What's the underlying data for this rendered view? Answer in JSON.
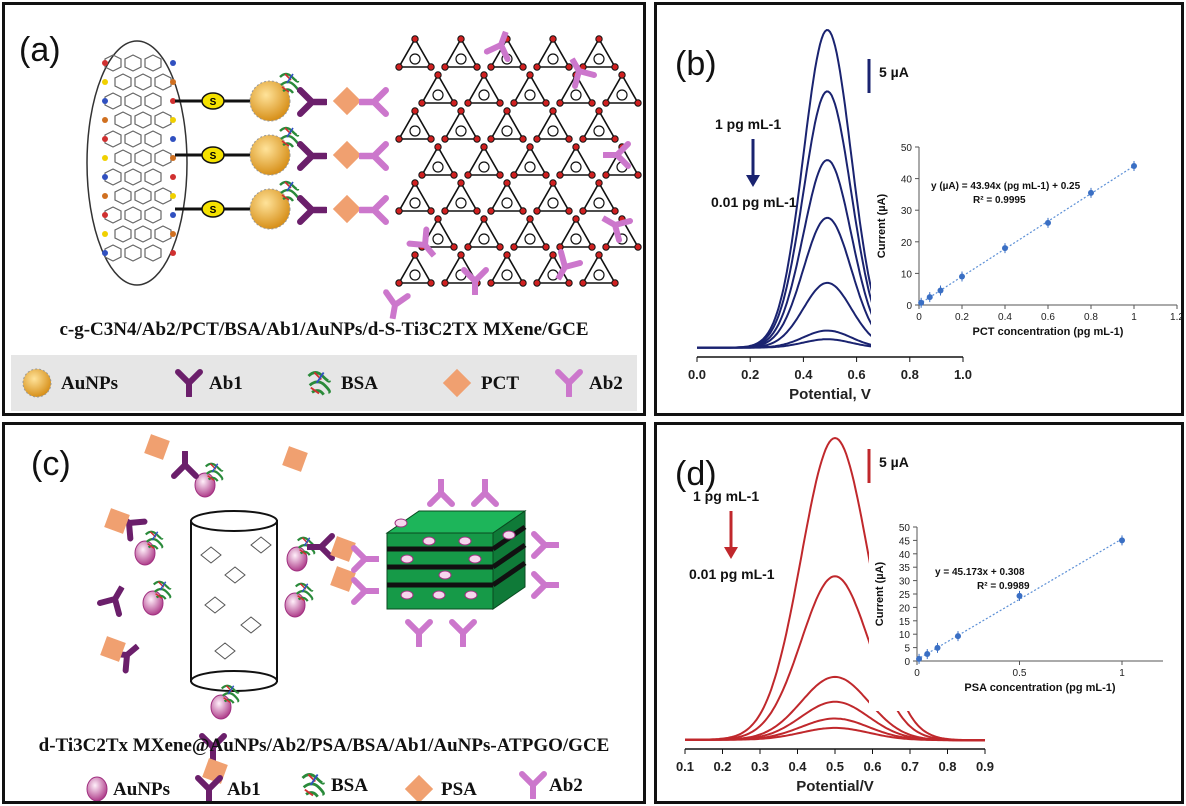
{
  "panels": {
    "a": {
      "label": "(a)",
      "caption": "c-g-C3N4/Ab2/PCT/BSA/Ab1/AuNPs/d-S-Ti3C2TX MXene/GCE",
      "linker_label": "S",
      "legend": {
        "aunps": "AuNPs",
        "ab1": "Ab1",
        "bsa": "BSA",
        "pct": "PCT",
        "ab2": "Ab2"
      }
    },
    "b": {
      "label": "(b)"
    },
    "c": {
      "label": "(c)",
      "caption": "d-Ti3C2Tx MXene@AuNPs/Ab2/PSA/BSA/Ab1/AuNPs-ATPGO/GCE",
      "legend": {
        "aunps": "AuNPs",
        "ab1": "Ab1",
        "bsa": "BSA",
        "psa": "PSA",
        "ab2": "Ab2"
      }
    },
    "d": {
      "label": "(d)"
    }
  },
  "colors": {
    "navy": "#1a2370",
    "red": "#c0282c",
    "blue_point": "#3a6fc4",
    "ab1": "#6b1f6b",
    "ab2": "#cc77cc",
    "antigen": "#f0a070",
    "gold": "#f2b632",
    "mxene": "#22aa55"
  },
  "chart_data": [
    {
      "panel": "b-main",
      "type": "line",
      "xlabel": "Potential, V",
      "xlim": [
        0.0,
        1.0
      ],
      "xticks": [
        "0.0",
        "0.2",
        "0.4",
        "0.6",
        "0.8",
        "1.0"
      ],
      "scale_bar": "5 µA",
      "annotation_top": "1 pg mL-1",
      "annotation_bottom": "0.01 pg mL-1",
      "peak_potential": 0.49,
      "series": [
        {
          "peak_current": 44
        },
        {
          "peak_current": 35.5
        },
        {
          "peak_current": 26
        },
        {
          "peak_current": 18
        },
        {
          "peak_current": 9
        },
        {
          "peak_current": 2.4
        },
        {
          "peak_current": 1.2
        }
      ]
    },
    {
      "panel": "b-inset",
      "type": "scatter",
      "xlabel": "PCT concentration (pg mL-1)",
      "ylabel": "Current (µA)",
      "xlim": [
        0,
        1.2
      ],
      "ylim": [
        0,
        50
      ],
      "xticks": [
        "0",
        "0.2",
        "0.4",
        "0.6",
        "0.8",
        "1",
        "1.2"
      ],
      "yticks": [
        "0",
        "10",
        "20",
        "30",
        "40",
        "50"
      ],
      "equation": "y (µA) = 43.94x (pg mL-1) + 0.25",
      "r2": "R² = 0.9995",
      "x": [
        0.01,
        0.05,
        0.1,
        0.2,
        0.4,
        0.6,
        0.8,
        1.0
      ],
      "y": [
        0.7,
        2.5,
        4.6,
        9.0,
        18.0,
        26.0,
        35.5,
        44.0
      ]
    },
    {
      "panel": "d-main",
      "type": "line",
      "xlabel": "Potential/V",
      "xlim": [
        0.1,
        0.9
      ],
      "xticks": [
        "0.1",
        "0.2",
        "0.3",
        "0.4",
        "0.5",
        "0.6",
        "0.7",
        "0.8",
        "0.9"
      ],
      "scale_bar": "5 µA",
      "annotation_top": "1 pg mL-1",
      "annotation_bottom": "0.01 pg mL-1",
      "peak_potential": 0.5,
      "series": [
        {
          "peak_current": 45
        },
        {
          "peak_current": 24.4
        },
        {
          "peak_current": 9.4
        },
        {
          "peak_current": 5.7
        },
        {
          "peak_current": 3.2
        },
        {
          "peak_current": 1.8
        }
      ]
    },
    {
      "panel": "d-inset",
      "type": "scatter",
      "xlabel": "PSA concentration (pg mL-1)",
      "ylabel": "Current (µA)",
      "xlim": [
        0,
        1.2
      ],
      "ylim": [
        0,
        50
      ],
      "xticks": [
        "0",
        "0.5",
        "1"
      ],
      "yticks": [
        "0",
        "5",
        "10",
        "15",
        "20",
        "25",
        "30",
        "35",
        "40",
        "45",
        "50"
      ],
      "equation": "y = 45.173x + 0.308",
      "r2": "R² = 0.9989",
      "x": [
        0.01,
        0.05,
        0.1,
        0.2,
        0.5,
        1.0
      ],
      "y": [
        0.8,
        2.6,
        4.9,
        9.3,
        24.3,
        45.0
      ]
    }
  ]
}
